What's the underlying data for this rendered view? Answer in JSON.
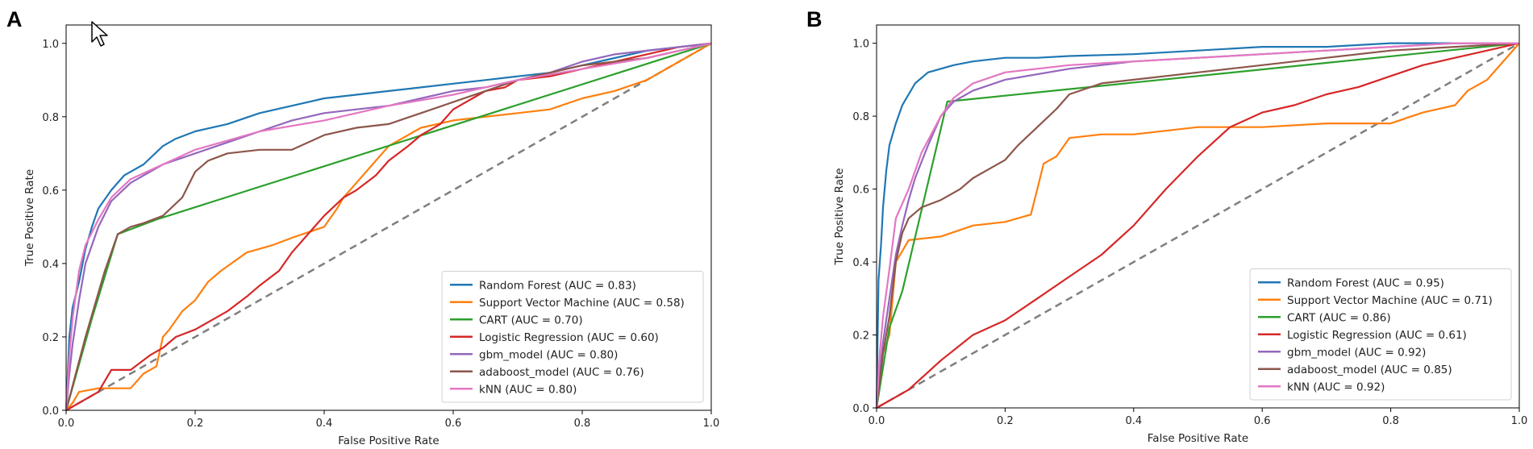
{
  "figure": {
    "panels": [
      "A",
      "B"
    ]
  },
  "chart_data": [
    {
      "type": "line",
      "panel_label": "A",
      "title": "",
      "xlabel": "False Positive Rate",
      "ylabel": "True Positive Rate",
      "xlim": [
        0.0,
        1.0
      ],
      "ylim": [
        0.0,
        1.05
      ],
      "xticks": [
        "0.0",
        "0.2",
        "0.4",
        "0.6",
        "0.8",
        "1.0"
      ],
      "yticks": [
        "0.0",
        "0.2",
        "0.4",
        "0.6",
        "0.8",
        "1.0"
      ],
      "grid": false,
      "legend_position": "bottom-right",
      "chance_line": {
        "x": [
          0,
          1
        ],
        "y": [
          0,
          1
        ],
        "color": "#7f7f7f",
        "style": "dashed"
      },
      "series": [
        {
          "name": "Random Forest (AUC = 0.83)",
          "color": "#1f77b4",
          "x": [
            0,
            0.005,
            0.01,
            0.02,
            0.03,
            0.04,
            0.05,
            0.07,
            0.09,
            0.12,
            0.15,
            0.17,
            0.2,
            0.25,
            0.3,
            0.35,
            0.4,
            0.45,
            0.5,
            0.55,
            0.6,
            0.65,
            0.7,
            0.75,
            0.8,
            0.85,
            0.9,
            0.95,
            1.0
          ],
          "y": [
            0,
            0.2,
            0.28,
            0.35,
            0.44,
            0.5,
            0.55,
            0.6,
            0.64,
            0.67,
            0.72,
            0.74,
            0.76,
            0.78,
            0.81,
            0.83,
            0.85,
            0.86,
            0.87,
            0.88,
            0.89,
            0.9,
            0.91,
            0.92,
            0.94,
            0.96,
            0.98,
            0.99,
            1.0
          ]
        },
        {
          "name": "Support Vector Machine (AUC = 0.58)",
          "color": "#ff7f0e",
          "x": [
            0,
            0.01,
            0.02,
            0.05,
            0.1,
            0.12,
            0.14,
            0.15,
            0.16,
            0.18,
            0.2,
            0.22,
            0.24,
            0.28,
            0.3,
            0.32,
            0.35,
            0.4,
            0.42,
            0.43,
            0.45,
            0.48,
            0.5,
            0.55,
            0.6,
            0.65,
            0.7,
            0.75,
            0.8,
            0.85,
            0.9,
            0.95,
            1.0
          ],
          "y": [
            0,
            0.02,
            0.05,
            0.06,
            0.06,
            0.1,
            0.12,
            0.2,
            0.22,
            0.27,
            0.3,
            0.35,
            0.38,
            0.43,
            0.44,
            0.45,
            0.47,
            0.5,
            0.55,
            0.58,
            0.62,
            0.68,
            0.72,
            0.77,
            0.79,
            0.8,
            0.81,
            0.82,
            0.85,
            0.87,
            0.9,
            0.95,
            1.0
          ]
        },
        {
          "name": "CART (AUC = 0.70)",
          "color": "#2ca02c",
          "x": [
            0,
            0.04,
            0.08,
            0.14,
            1.0
          ],
          "y": [
            0,
            0.25,
            0.48,
            0.52,
            1.0
          ]
        },
        {
          "name": "Logistic Regression (AUC = 0.60)",
          "color": "#d62728",
          "x": [
            0,
            0.05,
            0.07,
            0.1,
            0.13,
            0.15,
            0.17,
            0.2,
            0.23,
            0.25,
            0.28,
            0.3,
            0.33,
            0.35,
            0.38,
            0.4,
            0.43,
            0.45,
            0.48,
            0.5,
            0.53,
            0.55,
            0.58,
            0.6,
            0.63,
            0.65,
            0.68,
            0.7,
            0.75,
            0.8,
            0.85,
            0.9,
            0.95,
            1.0
          ],
          "y": [
            0,
            0.05,
            0.11,
            0.11,
            0.15,
            0.17,
            0.2,
            0.22,
            0.25,
            0.27,
            0.31,
            0.34,
            0.38,
            0.43,
            0.49,
            0.53,
            0.58,
            0.6,
            0.64,
            0.68,
            0.72,
            0.75,
            0.78,
            0.82,
            0.85,
            0.87,
            0.88,
            0.9,
            0.91,
            0.93,
            0.95,
            0.97,
            0.99,
            1.0
          ]
        },
        {
          "name": "gbm_model (AUC = 0.80)",
          "color": "#9467bd",
          "x": [
            0,
            0.005,
            0.01,
            0.02,
            0.03,
            0.05,
            0.07,
            0.1,
            0.15,
            0.2,
            0.25,
            0.3,
            0.35,
            0.4,
            0.45,
            0.5,
            0.55,
            0.6,
            0.65,
            0.7,
            0.75,
            0.8,
            0.85,
            0.9,
            0.95,
            1.0
          ],
          "y": [
            0,
            0.1,
            0.18,
            0.3,
            0.4,
            0.5,
            0.57,
            0.62,
            0.67,
            0.7,
            0.73,
            0.76,
            0.79,
            0.81,
            0.82,
            0.83,
            0.85,
            0.87,
            0.88,
            0.9,
            0.92,
            0.95,
            0.97,
            0.98,
            0.99,
            1.0
          ]
        },
        {
          "name": "adaboost_model (AUC = 0.76)",
          "color": "#8c564b",
          "x": [
            0,
            0.03,
            0.06,
            0.08,
            0.1,
            0.12,
            0.15,
            0.18,
            0.2,
            0.22,
            0.25,
            0.3,
            0.35,
            0.4,
            0.45,
            0.5,
            0.55,
            0.6,
            0.65,
            0.7,
            0.75,
            0.8,
            0.85,
            0.9,
            0.95,
            1.0
          ],
          "y": [
            0,
            0.2,
            0.38,
            0.48,
            0.5,
            0.51,
            0.53,
            0.58,
            0.65,
            0.68,
            0.7,
            0.71,
            0.71,
            0.75,
            0.77,
            0.78,
            0.81,
            0.84,
            0.87,
            0.9,
            0.92,
            0.94,
            0.95,
            0.96,
            0.98,
            1.0
          ]
        },
        {
          "name": "kNN (AUC = 0.80)",
          "color": "#e377c2",
          "x": [
            0,
            0.005,
            0.01,
            0.02,
            0.03,
            0.05,
            0.07,
            0.1,
            0.15,
            0.2,
            0.3,
            0.4,
            0.5,
            0.6,
            0.7,
            0.8,
            0.9,
            1.0
          ],
          "y": [
            0,
            0.15,
            0.25,
            0.38,
            0.45,
            0.52,
            0.58,
            0.63,
            0.67,
            0.71,
            0.76,
            0.79,
            0.83,
            0.86,
            0.9,
            0.93,
            0.96,
            1.0
          ]
        }
      ]
    },
    {
      "type": "line",
      "panel_label": "B",
      "title": "",
      "xlabel": "False Positive Rate",
      "ylabel": "True Positive Rate",
      "xlim": [
        0.0,
        1.0
      ],
      "ylim": [
        0.0,
        1.05
      ],
      "xticks": [
        "0.0",
        "0.2",
        "0.4",
        "0.6",
        "0.8",
        "1.0"
      ],
      "yticks": [
        "0.0",
        "0.2",
        "0.4",
        "0.6",
        "0.8",
        "1.0"
      ],
      "grid": false,
      "legend_position": "bottom-right",
      "chance_line": {
        "x": [
          0,
          1
        ],
        "y": [
          0,
          1
        ],
        "color": "#7f7f7f",
        "style": "dashed"
      },
      "series": [
        {
          "name": "Random Forest (AUC = 0.95)",
          "color": "#1f77b4",
          "x": [
            0,
            0.003,
            0.007,
            0.01,
            0.015,
            0.02,
            0.03,
            0.04,
            0.05,
            0.06,
            0.08,
            0.1,
            0.12,
            0.15,
            0.2,
            0.25,
            0.3,
            0.4,
            0.5,
            0.6,
            0.7,
            0.8,
            0.9,
            1.0
          ],
          "y": [
            0,
            0.35,
            0.45,
            0.55,
            0.65,
            0.72,
            0.78,
            0.83,
            0.86,
            0.89,
            0.92,
            0.93,
            0.94,
            0.95,
            0.96,
            0.96,
            0.965,
            0.97,
            0.98,
            0.99,
            0.99,
            1.0,
            1.0,
            1.0
          ]
        },
        {
          "name": "Support Vector Machine (AUC = 0.71)",
          "color": "#ff7f0e",
          "x": [
            0,
            0.01,
            0.02,
            0.03,
            0.05,
            0.1,
            0.15,
            0.2,
            0.24,
            0.25,
            0.26,
            0.28,
            0.3,
            0.35,
            0.4,
            0.45,
            0.5,
            0.6,
            0.7,
            0.75,
            0.8,
            0.85,
            0.9,
            0.92,
            0.95,
            1.0
          ],
          "y": [
            0,
            0.15,
            0.2,
            0.4,
            0.46,
            0.47,
            0.5,
            0.51,
            0.53,
            0.6,
            0.67,
            0.69,
            0.74,
            0.75,
            0.75,
            0.76,
            0.77,
            0.77,
            0.78,
            0.78,
            0.78,
            0.81,
            0.83,
            0.87,
            0.9,
            1.0
          ]
        },
        {
          "name": "CART (AUC = 0.86)",
          "color": "#2ca02c",
          "x": [
            0,
            0.02,
            0.04,
            0.11,
            1.0
          ],
          "y": [
            0,
            0.22,
            0.32,
            0.84,
            1.0
          ]
        },
        {
          "name": "Logistic Regression (AUC = 0.61)",
          "color": "#d62728",
          "x": [
            0,
            0.05,
            0.1,
            0.15,
            0.2,
            0.25,
            0.3,
            0.35,
            0.4,
            0.45,
            0.5,
            0.55,
            0.6,
            0.65,
            0.7,
            0.75,
            0.8,
            0.85,
            0.9,
            0.95,
            1.0
          ],
          "y": [
            0,
            0.05,
            0.13,
            0.2,
            0.24,
            0.3,
            0.36,
            0.42,
            0.5,
            0.6,
            0.69,
            0.77,
            0.81,
            0.83,
            0.86,
            0.88,
            0.91,
            0.94,
            0.96,
            0.98,
            1.0
          ]
        },
        {
          "name": "gbm_model (AUC = 0.92)",
          "color": "#9467bd",
          "x": [
            0,
            0.005,
            0.01,
            0.02,
            0.03,
            0.04,
            0.05,
            0.06,
            0.08,
            0.1,
            0.12,
            0.15,
            0.2,
            0.3,
            0.4,
            0.5,
            0.6,
            0.7,
            0.8,
            0.9,
            1.0
          ],
          "y": [
            0,
            0.1,
            0.18,
            0.3,
            0.42,
            0.5,
            0.57,
            0.63,
            0.72,
            0.8,
            0.84,
            0.87,
            0.9,
            0.93,
            0.95,
            0.96,
            0.97,
            0.98,
            0.99,
            1.0,
            1.0
          ]
        },
        {
          "name": "adaboost_model (AUC = 0.85)",
          "color": "#8c564b",
          "x": [
            0,
            0.01,
            0.02,
            0.03,
            0.04,
            0.05,
            0.07,
            0.1,
            0.13,
            0.15,
            0.18,
            0.2,
            0.22,
            0.25,
            0.28,
            0.3,
            0.35,
            0.4,
            0.5,
            0.6,
            0.7,
            0.8,
            0.9,
            1.0
          ],
          "y": [
            0,
            0.15,
            0.25,
            0.4,
            0.48,
            0.52,
            0.55,
            0.57,
            0.6,
            0.63,
            0.66,
            0.68,
            0.72,
            0.77,
            0.82,
            0.86,
            0.89,
            0.9,
            0.92,
            0.94,
            0.96,
            0.98,
            0.99,
            1.0
          ]
        },
        {
          "name": "kNN (AUC = 0.92)",
          "color": "#e377c2",
          "x": [
            0,
            0.005,
            0.01,
            0.02,
            0.03,
            0.05,
            0.07,
            0.1,
            0.12,
            0.15,
            0.2,
            0.3,
            0.4,
            0.5,
            0.6,
            0.7,
            0.8,
            0.9,
            1.0
          ],
          "y": [
            0,
            0.15,
            0.25,
            0.38,
            0.52,
            0.6,
            0.7,
            0.8,
            0.85,
            0.89,
            0.92,
            0.94,
            0.95,
            0.96,
            0.97,
            0.98,
            0.99,
            1.0,
            1.0
          ]
        }
      ]
    }
  ]
}
